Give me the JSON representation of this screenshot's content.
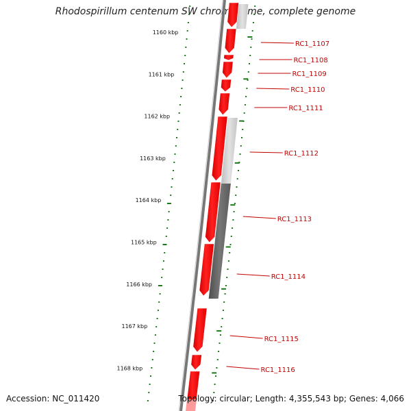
{
  "title": "Rhodospirillum centenum SW chromosome, complete genome",
  "footer": {
    "accession": "Accession: NC_011420",
    "summary": "Topology: circular; Length: 4,355,543 bp; Genes: 4,066"
  },
  "colors": {
    "cds_forward": "#ff0000",
    "backbone": "#707070",
    "tick": "#1a7a1a",
    "label": "#c00000",
    "feature_light": "#c8c8c8",
    "feature_dark": "#606060"
  },
  "scale_labels": [
    "1160 kbp",
    "1161 kbp",
    "1162 kbp",
    "1163 kbp",
    "1164 kbp",
    "1165 kbp",
    "1166 kbp",
    "1167 kbp",
    "1168 kbp"
  ],
  "genes": [
    "RC1_1107",
    "RC1_1108",
    "RC1_1109",
    "RC1_1110",
    "RC1_1111",
    "RC1_1112",
    "RC1_1113",
    "RC1_1114",
    "RC1_1115",
    "RC1_1116"
  ]
}
